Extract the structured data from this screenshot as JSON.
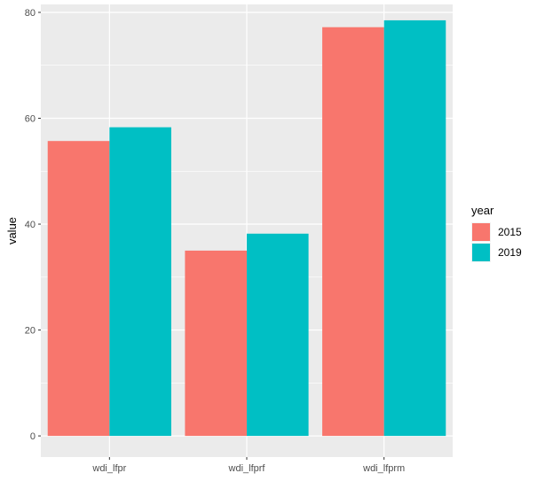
{
  "chart_data": {
    "type": "bar",
    "categories": [
      "wdi_lfpr",
      "wdi_lfprf",
      "wdi_lfprm"
    ],
    "series": [
      {
        "name": "2015",
        "values": [
          55.7,
          35.0,
          77.2
        ],
        "color": "#F8766D"
      },
      {
        "name": "2019",
        "values": [
          58.3,
          38.2,
          78.5
        ],
        "color": "#00BFC4"
      }
    ],
    "xlabel": "",
    "ylabel": "value",
    "ylim": [
      -4,
      81.5
    ],
    "yticks": [
      0,
      20,
      40,
      60,
      80
    ],
    "legend": {
      "title": "year",
      "position": "right"
    },
    "grid": true,
    "panel_background": "#EBEBEB",
    "grid_color": "#FFFFFF"
  }
}
